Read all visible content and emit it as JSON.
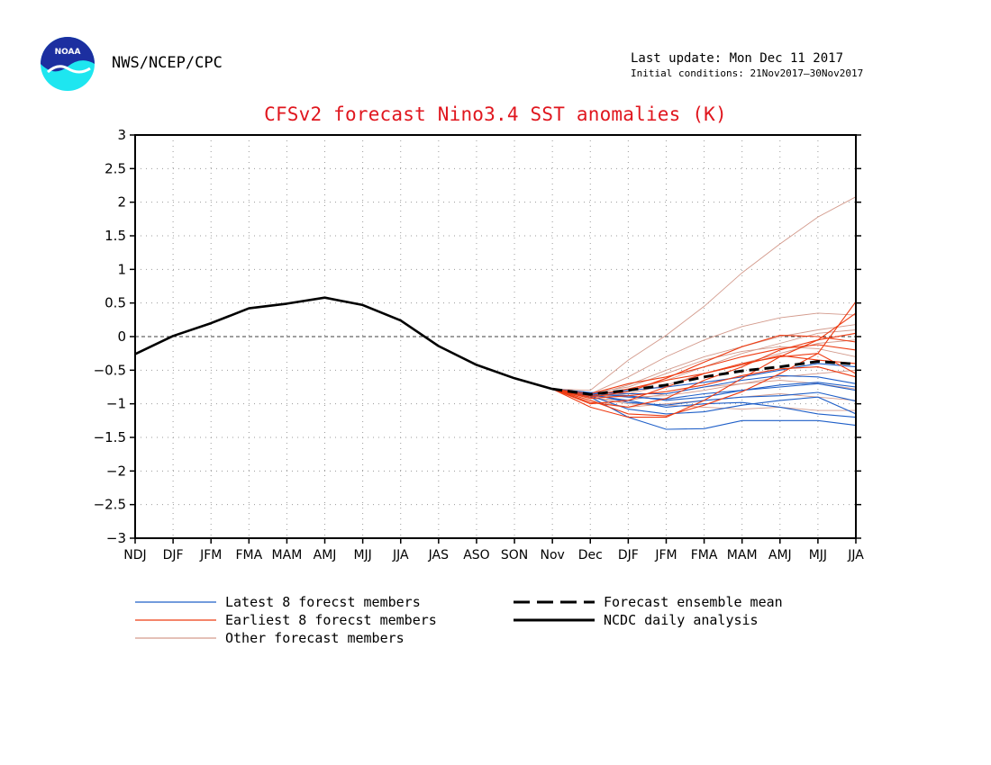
{
  "header": {
    "agency": "NWS/NCEP/CPC",
    "last_update": "Last update: Mon Dec 11 2017",
    "initial_conditions": "Initial conditions: 21Nov2017–30Nov2017",
    "logo_text": "NOAA"
  },
  "legend": {
    "latest": "Latest 8 forecst members",
    "earliest": "Earliest 8 forecst members",
    "other": "Other forecast members",
    "ensemble_mean": "Forecast ensemble mean",
    "analysis": "NCDC daily analysis"
  },
  "colors": {
    "title": "#e0161e",
    "latest": "#1f5fc8",
    "earliest": "#ee3b12",
    "other": "#d39a8c",
    "grid": "#9a9a9a"
  },
  "chart_data": {
    "type": "line",
    "title": "CFSv2 forecast Nino3.4 SST anomalies (K)",
    "categories": [
      "NDJ",
      "DJF",
      "JFM",
      "FMA",
      "MAM",
      "AMJ",
      "MJJ",
      "JJA",
      "JAS",
      "ASO",
      "SON",
      "Nov",
      "Dec",
      "DJF",
      "JFM",
      "FMA",
      "MAM",
      "AMJ",
      "MJJ",
      "JJA"
    ],
    "yticks": [
      "3",
      "2.5",
      "2",
      "1.5",
      "1",
      "0.5",
      "0",
      "−0.5",
      "−1",
      "−1.5",
      "−2",
      "−2.5",
      "−3"
    ],
    "ylim": [
      -3,
      3
    ],
    "grid": true,
    "zero_line": true,
    "analysis": {
      "name": "NCDC daily analysis",
      "start_index": 0,
      "values": [
        -0.26,
        0.01,
        0.2,
        0.42,
        0.49,
        0.58,
        0.47,
        0.24,
        -0.14,
        -0.42,
        -0.62,
        -0.78
      ]
    },
    "ensemble_mean": {
      "name": "Forecast ensemble mean",
      "start_index": 11,
      "values": [
        -0.78,
        -0.86,
        -0.8,
        -0.72,
        -0.6,
        -0.51,
        -0.45,
        -0.37,
        -0.41
      ]
    },
    "members": [
      {
        "group": "latest",
        "values": [
          -0.78,
          -0.9,
          -1.2,
          -1.38,
          -1.37,
          -1.25,
          -1.25,
          -1.25,
          -1.32
        ]
      },
      {
        "group": "latest",
        "values": [
          -0.78,
          -0.88,
          -1.08,
          -1.15,
          -1.12,
          -1.02,
          -0.95,
          -0.9,
          -1.15
        ]
      },
      {
        "group": "latest",
        "values": [
          -0.78,
          -0.85,
          -0.98,
          -1.02,
          -0.95,
          -0.9,
          -0.88,
          -0.83,
          -0.96
        ]
      },
      {
        "group": "latest",
        "values": [
          -0.78,
          -0.84,
          -0.9,
          -0.93,
          -0.85,
          -0.8,
          -0.75,
          -0.7,
          -0.8
        ]
      },
      {
        "group": "latest",
        "values": [
          -0.78,
          -0.83,
          -0.85,
          -0.85,
          -0.75,
          -0.65,
          -0.58,
          -0.6,
          -0.7
        ]
      },
      {
        "group": "latest",
        "values": [
          -0.78,
          -0.85,
          -0.88,
          -0.95,
          -0.9,
          -0.8,
          -0.72,
          -0.68,
          -0.75
        ]
      },
      {
        "group": "latest",
        "values": [
          -0.78,
          -0.86,
          -0.8,
          -0.75,
          -0.68,
          -0.6,
          -0.5,
          -0.4,
          -0.45
        ]
      },
      {
        "group": "latest",
        "values": [
          -0.78,
          -0.87,
          -0.95,
          -1.05,
          -1.0,
          -0.98,
          -1.05,
          -1.15,
          -1.2
        ]
      },
      {
        "group": "earliest",
        "values": [
          -0.78,
          -0.95,
          -1.15,
          -1.18,
          -1.02,
          -0.82,
          -0.55,
          -0.25,
          0.52
        ]
      },
      {
        "group": "earliest",
        "values": [
          -0.78,
          -0.9,
          -0.82,
          -0.62,
          -0.38,
          -0.15,
          0.02,
          0.0,
          -0.08
        ]
      },
      {
        "group": "earliest",
        "values": [
          -0.78,
          -1.05,
          -1.2,
          -1.2,
          -0.95,
          -0.62,
          -0.3,
          -0.05,
          0.35
        ]
      },
      {
        "group": "earliest",
        "values": [
          -0.78,
          -0.85,
          -0.7,
          -0.6,
          -0.45,
          -0.3,
          -0.18,
          -0.12,
          -0.2
        ]
      },
      {
        "group": "earliest",
        "values": [
          -0.78,
          -0.98,
          -1.05,
          -0.92,
          -0.65,
          -0.45,
          -0.2,
          -0.05,
          0.05
        ]
      },
      {
        "group": "earliest",
        "values": [
          -0.78,
          -0.88,
          -0.78,
          -0.65,
          -0.55,
          -0.42,
          -0.28,
          -0.35,
          -0.4
        ]
      },
      {
        "group": "earliest",
        "values": [
          -0.78,
          -1.0,
          -0.95,
          -0.75,
          -0.55,
          -0.4,
          -0.3,
          -0.25,
          -0.55
        ]
      },
      {
        "group": "earliest",
        "values": [
          -0.78,
          -0.92,
          -0.88,
          -0.82,
          -0.72,
          -0.58,
          -0.48,
          -0.45,
          -0.6
        ]
      },
      {
        "group": "other",
        "values": [
          -0.78,
          -0.8,
          -0.35,
          0.02,
          0.45,
          0.95,
          1.38,
          1.78,
          2.08
        ]
      },
      {
        "group": "other",
        "values": [
          -0.78,
          -0.85,
          -0.6,
          -0.3,
          -0.05,
          0.15,
          0.28,
          0.35,
          0.32
        ]
      },
      {
        "group": "other",
        "values": [
          -0.78,
          -0.88,
          -0.72,
          -0.5,
          -0.3,
          -0.15,
          0.0,
          0.1,
          0.18
        ]
      },
      {
        "group": "other",
        "values": [
          -0.78,
          -0.9,
          -0.85,
          -0.72,
          -0.55,
          -0.4,
          -0.25,
          -0.1,
          -0.05
        ]
      },
      {
        "group": "other",
        "values": [
          -0.78,
          -0.92,
          -0.95,
          -0.85,
          -0.75,
          -0.7,
          -0.6,
          -0.55,
          -0.5
        ]
      },
      {
        "group": "other",
        "values": [
          -0.78,
          -0.95,
          -1.05,
          -1.0,
          -0.95,
          -0.9,
          -0.85,
          -0.9,
          -0.95
        ]
      },
      {
        "group": "other",
        "values": [
          -0.78,
          -0.9,
          -1.0,
          -1.02,
          -1.05,
          -1.08,
          -1.05,
          -1.1,
          -1.1
        ]
      },
      {
        "group": "other",
        "values": [
          -0.78,
          -0.86,
          -0.82,
          -0.65,
          -0.45,
          -0.25,
          -0.1,
          0.05,
          0.1
        ]
      },
      {
        "group": "other",
        "values": [
          -0.78,
          -0.88,
          -0.9,
          -0.88,
          -0.8,
          -0.7,
          -0.65,
          -0.7,
          -0.78
        ]
      },
      {
        "group": "other",
        "values": [
          -0.78,
          -0.84,
          -0.75,
          -0.55,
          -0.35,
          -0.22,
          -0.15,
          -0.18,
          -0.3
        ]
      }
    ]
  }
}
